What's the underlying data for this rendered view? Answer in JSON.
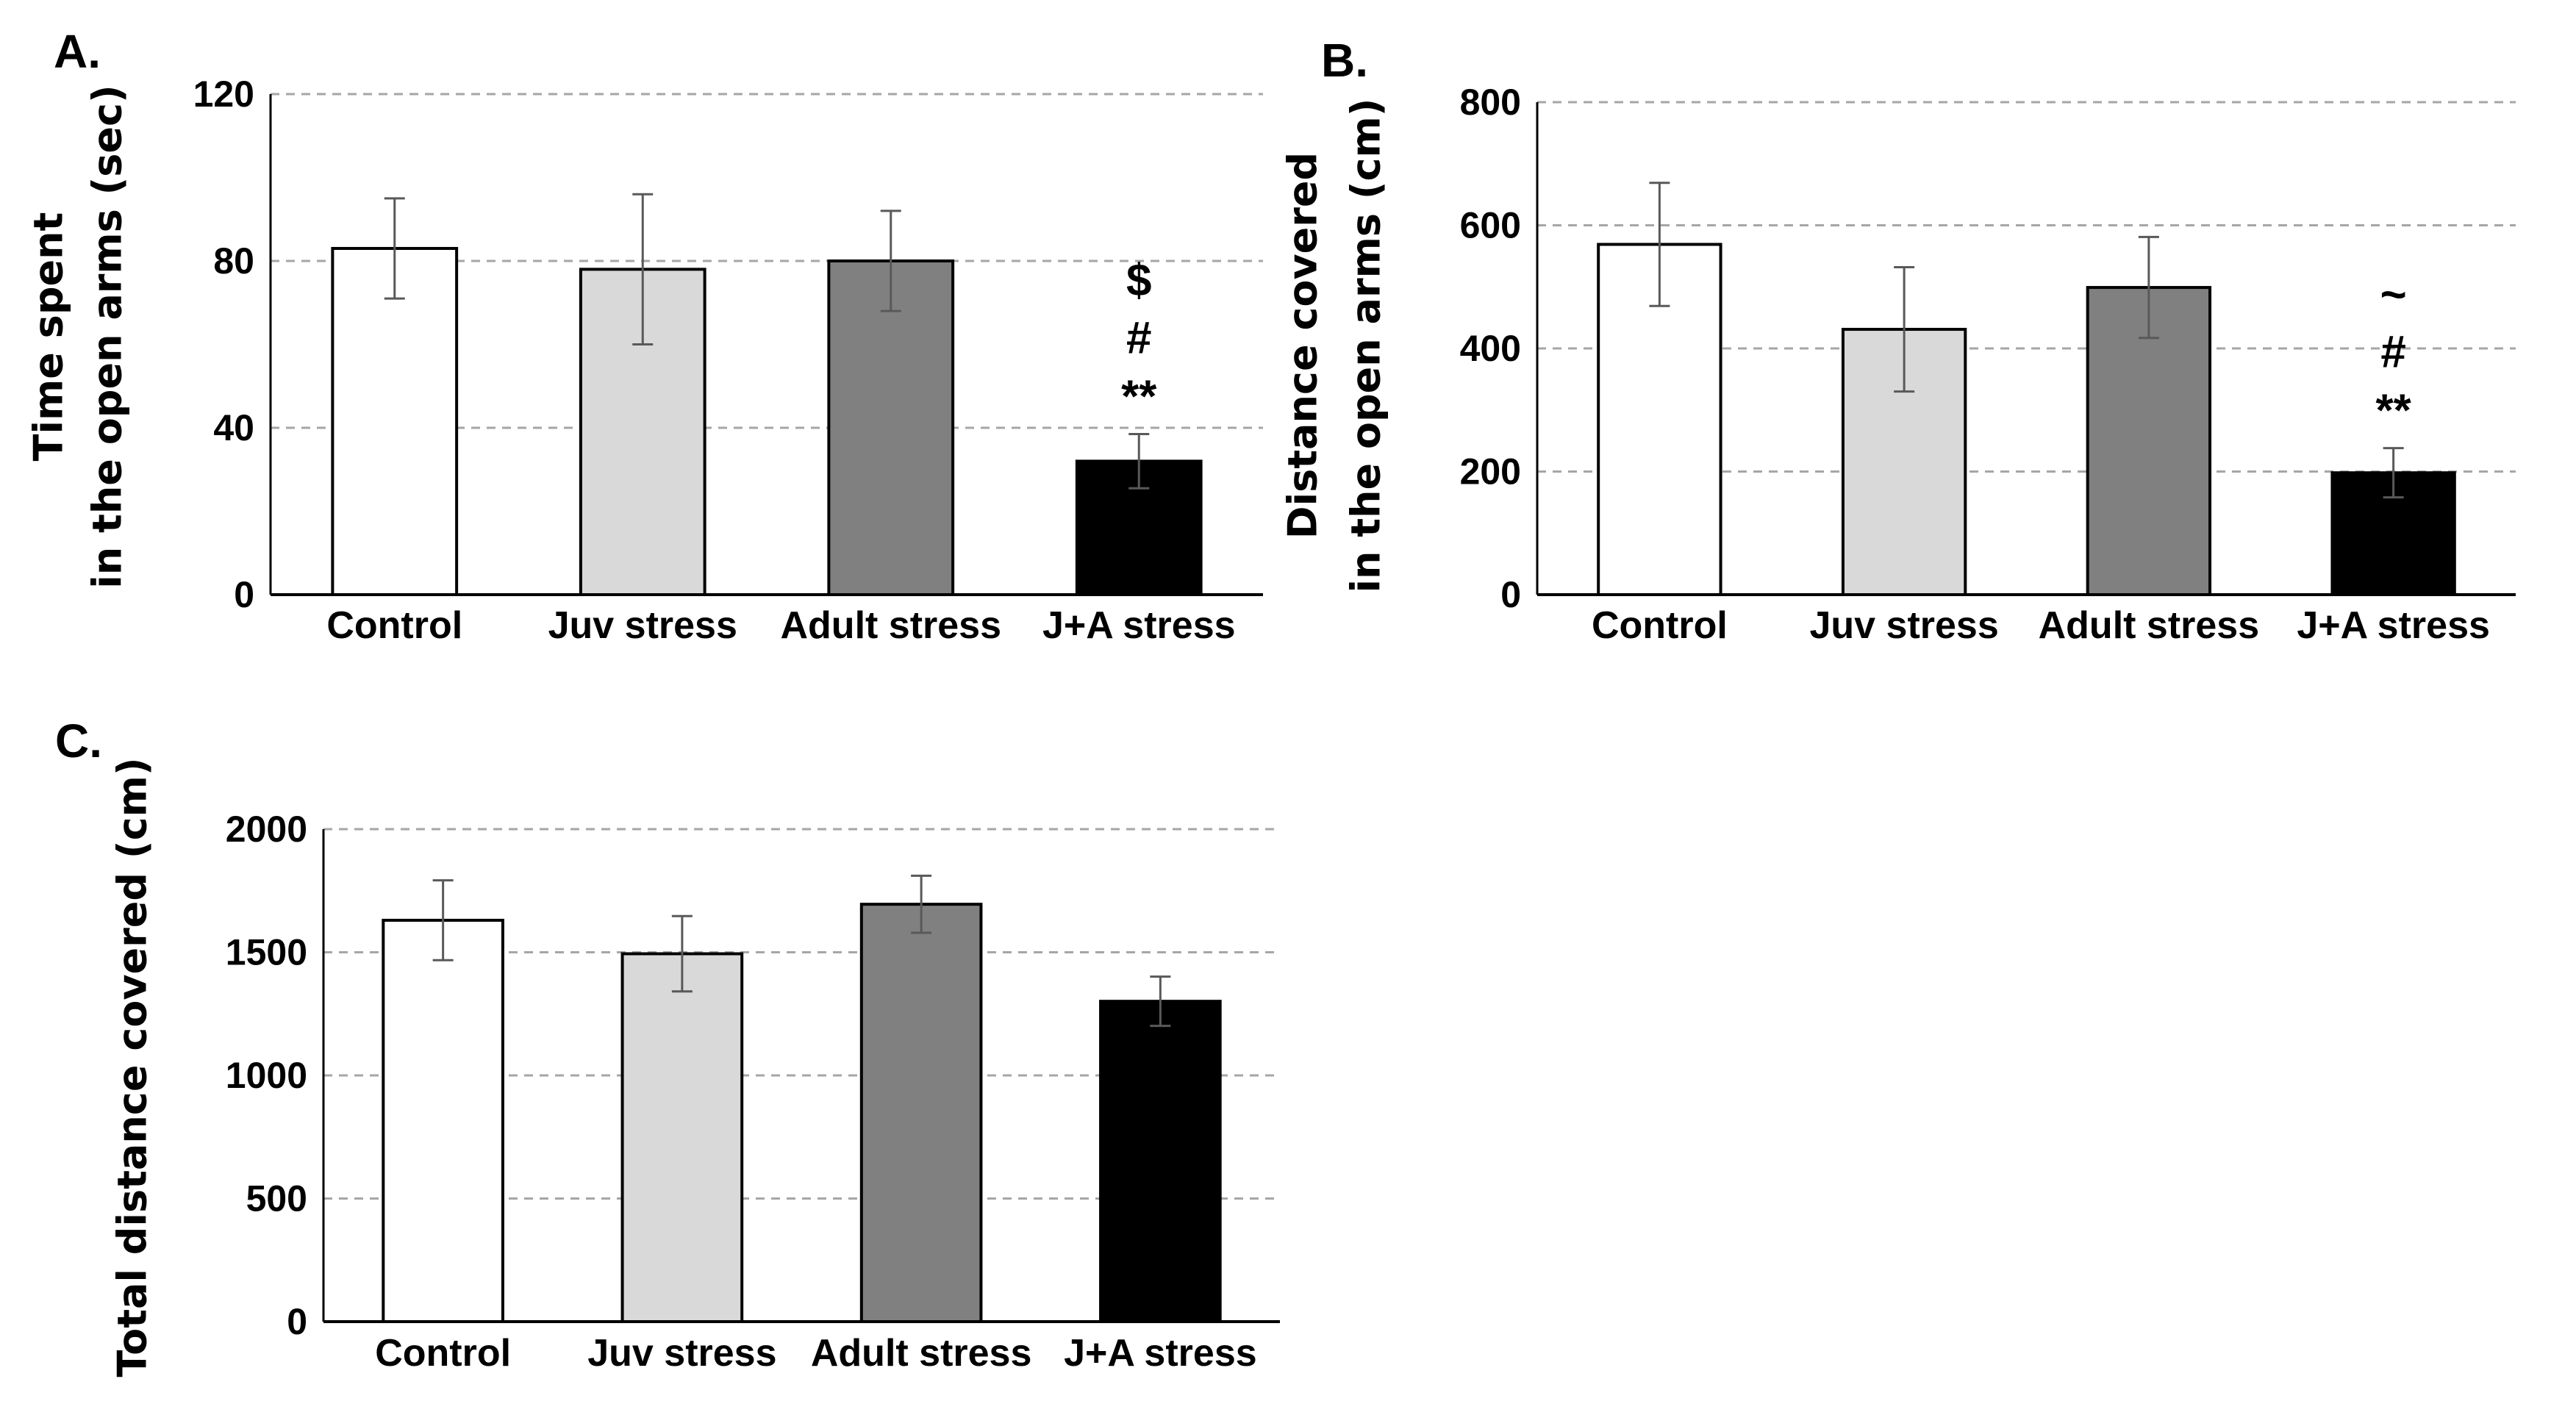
{
  "chart_data": [
    {
      "type": "bar",
      "panel": "A.",
      "title": "",
      "ylabel_lines": [
        "Time  spent",
        "in the open arms (sec)"
      ],
      "xlabel": "",
      "categories": [
        "Control",
        "Juv stress",
        "Adult stress",
        "J+A stress"
      ],
      "values": [
        83,
        78,
        80,
        32
      ],
      "error": [
        12,
        18,
        12,
        6.5
      ],
      "ylim": [
        0,
        120
      ],
      "yticks": [
        0,
        40,
        80,
        120
      ],
      "grid": true,
      "annotations": [
        {
          "category": "J+A stress",
          "labels": [
            "**",
            "#",
            "$"
          ]
        }
      ]
    },
    {
      "type": "bar",
      "panel": "B.",
      "title": "",
      "ylabel_lines": [
        "Distance covered",
        "in the open arms (cm)"
      ],
      "xlabel": "",
      "categories": [
        "Control",
        "Juv stress",
        "Adult stress",
        "J+A stress"
      ],
      "values": [
        569,
        431,
        499,
        198
      ],
      "error": [
        100,
        101,
        82,
        40
      ],
      "ylim": [
        0,
        800
      ],
      "yticks": [
        0,
        200,
        400,
        600,
        800
      ],
      "grid": true,
      "annotations": [
        {
          "category": "J+A stress",
          "labels": [
            "**",
            "#",
            "~"
          ]
        }
      ]
    },
    {
      "type": "bar",
      "panel": "C.",
      "title": "",
      "ylabel_lines": [
        "Total distance covered (cm)"
      ],
      "xlabel": "",
      "categories": [
        "Control",
        "Juv stress",
        "Adult stress",
        "J+A stress"
      ],
      "values": [
        1630,
        1494,
        1695,
        1301
      ],
      "error": [
        162,
        153,
        116,
        100
      ],
      "ylim": [
        0,
        2000
      ],
      "yticks": [
        0,
        500,
        1000,
        1500,
        2000
      ],
      "grid": true,
      "annotations": []
    }
  ],
  "colors": {
    "bars": [
      "#ffffff",
      "#d9d9d9",
      "#808080",
      "#000000"
    ],
    "grid": "#a6a6a6",
    "error": "#595959"
  }
}
